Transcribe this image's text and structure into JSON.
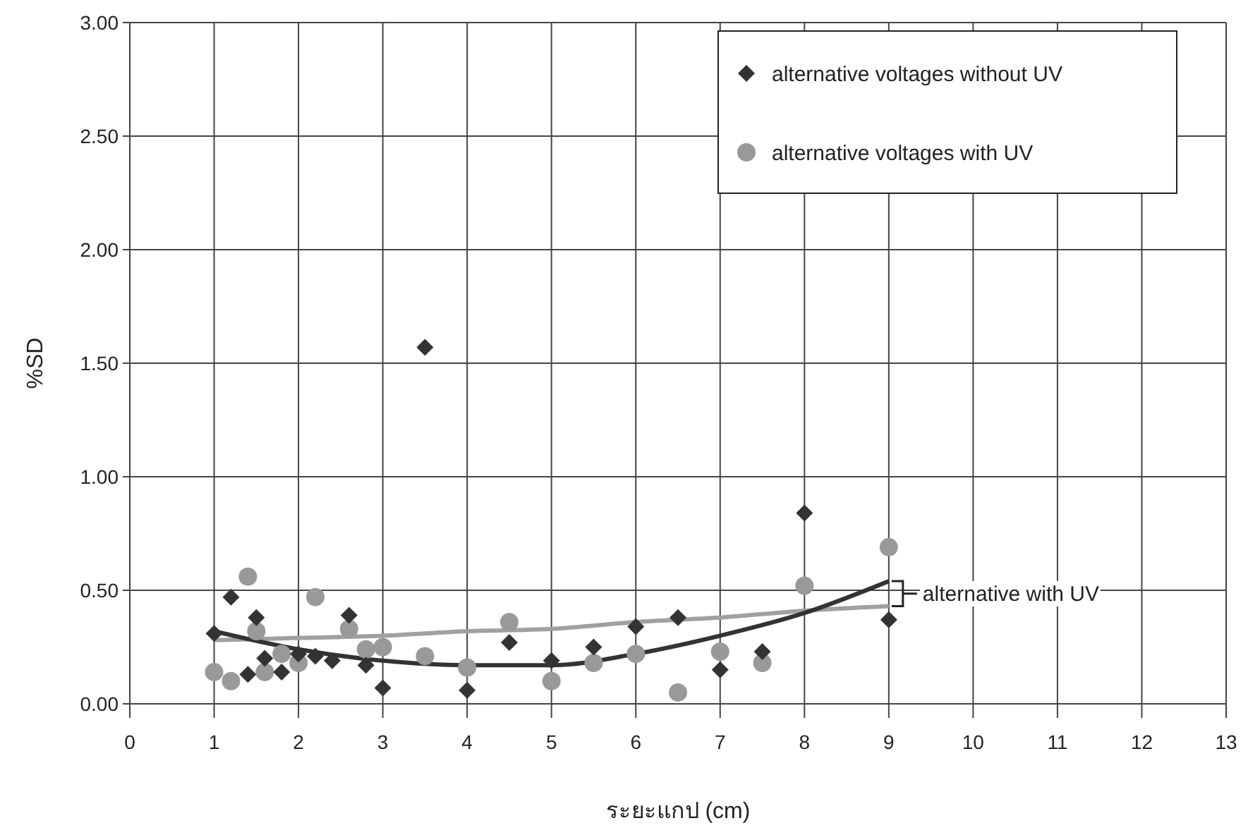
{
  "chart_data": {
    "type": "scatter",
    "xlabel": "ระยะแกป (cm)",
    "ylabel": "%SD",
    "xlim": [
      0,
      13
    ],
    "xticks": [
      0,
      1,
      2,
      3,
      4,
      5,
      6,
      7,
      8,
      9,
      10,
      11,
      12,
      13
    ],
    "ylim": [
      0,
      3
    ],
    "yticks": [
      {
        "value": 0,
        "label": "0.00"
      },
      {
        "value": 0.5,
        "label": "0.50"
      },
      {
        "value": 1,
        "label": "1.00"
      },
      {
        "value": 1.5,
        "label": "1.50"
      },
      {
        "value": 2,
        "label": "2.00"
      },
      {
        "value": 2.5,
        "label": "2.50"
      },
      {
        "value": 3,
        "label": "3.00"
      }
    ],
    "grid": true,
    "legend": "top right",
    "series": [
      {
        "name": "alternative voltages without UV",
        "color": "#333333",
        "marker": "diamond",
        "x": [
          1,
          1.2,
          1.4,
          1.5,
          1.6,
          1.8,
          2,
          2.2,
          2.4,
          2.6,
          2.8,
          3,
          3.5,
          4,
          4.5,
          5,
          5.5,
          6,
          6.5,
          7,
          7.5,
          8,
          9
        ],
        "values": [
          0.31,
          0.47,
          0.13,
          0.38,
          0.2,
          0.14,
          0.22,
          0.21,
          0.19,
          0.39,
          0.17,
          0.07,
          1.57,
          0.06,
          0.27,
          0.19,
          0.25,
          0.34,
          0.38,
          0.15,
          0.23,
          0.84,
          0.37
        ]
      },
      {
        "name": "alternative voltages with UV",
        "color": "#999999",
        "marker": "circle",
        "x": [
          1,
          1.2,
          1.4,
          1.5,
          1.6,
          1.8,
          2,
          2.2,
          2.6,
          2.8,
          3,
          3.5,
          4,
          4.5,
          5,
          5.5,
          6,
          6.5,
          7,
          7.5,
          8,
          9
        ],
        "values": [
          0.14,
          0.1,
          0.56,
          0.32,
          0.14,
          0.22,
          0.18,
          0.47,
          0.33,
          0.24,
          0.25,
          0.21,
          0.16,
          0.36,
          0.1,
          0.18,
          0.22,
          0.05,
          0.23,
          0.18,
          0.52,
          0.69
        ]
      },
      {
        "type": "line",
        "color": "#333333",
        "marker": "none",
        "x": [
          1,
          2,
          3,
          4,
          5,
          6,
          7,
          8,
          9
        ],
        "values": [
          0.32,
          0.24,
          0.19,
          0.17,
          0.17,
          0.22,
          0.3,
          0.4,
          0.54
        ]
      },
      {
        "type": "line",
        "color": "#a0a0a0",
        "marker": "none",
        "x": [
          1,
          2,
          3,
          4,
          5,
          6,
          7,
          8,
          9
        ],
        "values": [
          0.28,
          0.29,
          0.3,
          0.32,
          0.33,
          0.36,
          0.38,
          0.41,
          0.43
        ]
      }
    ],
    "annotations": [
      "alternative with UV"
    ]
  }
}
